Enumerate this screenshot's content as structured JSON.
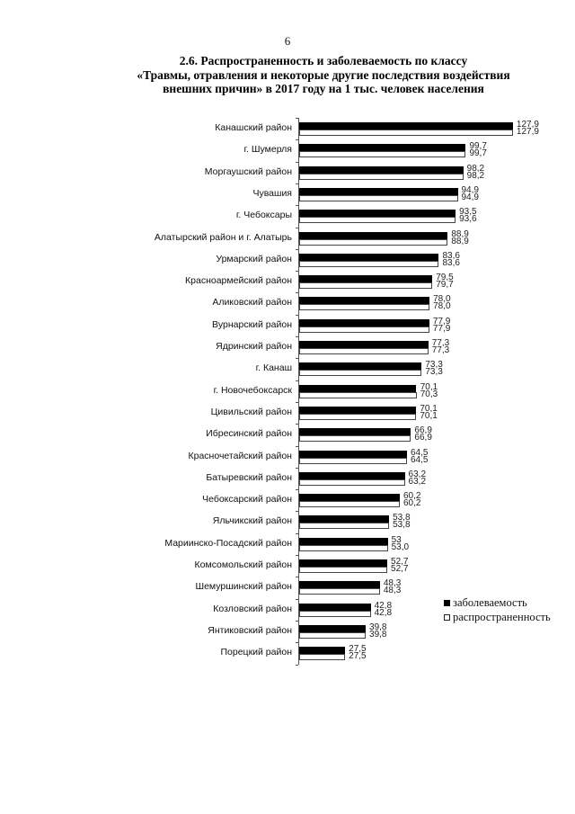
{
  "page_number": "6",
  "title_lines": [
    "2.6. Распространенность и заболеваемость по классу",
    "«Травмы, отравления и некоторые другие последствия воздействия",
    "внешних причин» в 2017 году на 1 тыс. человек населения"
  ],
  "legend": [
    {
      "label": "заболеваемость",
      "color": "#000000"
    },
    {
      "label": "распространенность",
      "color": "#ffffff"
    }
  ],
  "chart_data": {
    "type": "bar",
    "orientation": "horizontal",
    "title": "2.6. Распространенность и заболеваемость по классу «Травмы, отравления и некоторые другие последствия воздействия внешних причин» в 2017 году на 1 тыс. человек населения",
    "xlabel": "",
    "ylabel": "",
    "grid": false,
    "legend_position": "right",
    "xlim": [
      0,
      130
    ],
    "categories": [
      "Канашский район",
      "г. Шумерля",
      "Моргаушский район",
      "Чувашия",
      "г. Чебоксары",
      "Алатырский район и г. Алатырь",
      "Урмарский район",
      "Красноармейский район",
      "Аликовский район",
      "Вурнарский район",
      "Ядринский район",
      "г. Канаш",
      "г. Новочебоксарск",
      "Цивильский район",
      "Ибресинский район",
      "Красночетайский район",
      "Батыревский район",
      "Чебоксарский район",
      "Яльчикский район",
      "Мариинско-Посадский район",
      "Комсомольский район",
      "Шемуршинский  район",
      "Козловский район",
      "Янтиковский район",
      "Порецкий район"
    ],
    "series": [
      {
        "name": "заболеваемость",
        "color": "#000000",
        "values": [
          127.9,
          99.7,
          98.2,
          94.9,
          93.5,
          88.9,
          83.6,
          79.5,
          78.0,
          77.9,
          77.3,
          73.3,
          70.1,
          70.1,
          66.9,
          64.5,
          63.2,
          60.2,
          53.8,
          53,
          52.7,
          48.3,
          42.8,
          39.8,
          27.5
        ],
        "labels": [
          "127,9",
          "99,7",
          "98,2",
          "94,9",
          "93,5",
          "88,9",
          "83,6",
          "79,5",
          "78,0",
          "77,9",
          "77,3",
          "73,3",
          "70,1",
          "70,1",
          "66,9",
          "64,5",
          "63,2",
          "60,2",
          "53,8",
          "53",
          "52,7",
          "48,3",
          "42,8",
          "39,8",
          "27,5"
        ]
      },
      {
        "name": "распространенность",
        "color": "#ffffff",
        "values": [
          127.9,
          99.7,
          98.2,
          94.9,
          93.6,
          88.9,
          83.6,
          79.7,
          78.0,
          77.9,
          77.3,
          73.3,
          70.3,
          70.1,
          66.9,
          64.5,
          63.2,
          60.2,
          53.8,
          53.0,
          52.7,
          48.3,
          42.8,
          39.8,
          27.5
        ],
        "labels": [
          "127,9",
          "99,7",
          "98,2",
          "94,9",
          "93,6",
          "88,9",
          "83,6",
          "79,7",
          "78,0",
          "77,9",
          "77,3",
          "73,3",
          "70,3",
          "70,1",
          "66,9",
          "64,5",
          "63,2",
          "60,2",
          "53,8",
          "53,0",
          "52,7",
          "48,3",
          "42,8",
          "39,8",
          "27,5"
        ]
      }
    ]
  }
}
